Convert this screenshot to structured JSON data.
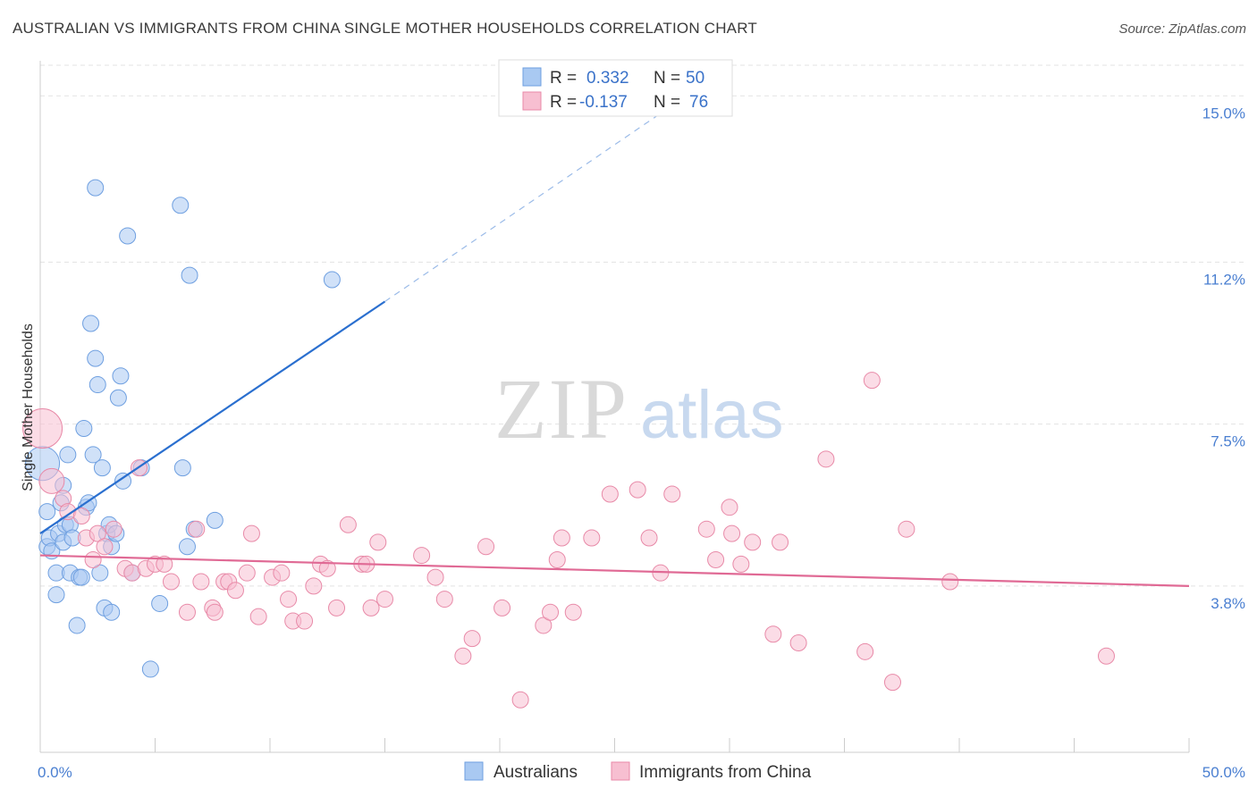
{
  "title": "AUSTRALIAN VS IMMIGRANTS FROM CHINA SINGLE MOTHER HOUSEHOLDS CORRELATION CHART",
  "source": "Source: ZipAtlas.com",
  "watermark": {
    "zip": "ZIP",
    "atlas": "atlas"
  },
  "legend": {
    "r_label": "R =",
    "n_label": "N =",
    "rows": [
      {
        "r": "0.332",
        "n": "50",
        "color": "#a9c9f2"
      },
      {
        "r": "-0.137",
        "n": "76",
        "color": "#f7bfd1"
      }
    ]
  },
  "chart_data": {
    "type": "scatter",
    "xlabel": "",
    "ylabel": "Single Mother Households",
    "xlim": [
      0,
      50
    ],
    "ylim": [
      0,
      15.7
    ],
    "x_tick_labels": [
      "0.0%",
      "50.0%"
    ],
    "y_ticks": [
      3.8,
      7.5,
      11.2,
      15.0
    ],
    "y_tick_labels": [
      "3.8%",
      "7.5%",
      "11.2%",
      "15.0%"
    ],
    "grid": "horizontal dashed",
    "legend_position": "top-center",
    "series": [
      {
        "name": "Australians",
        "color": "#a9c9f2",
        "edge": "#6e9fe0",
        "trend_color": "#2a6fcf",
        "trend": {
          "x0": 0,
          "y0": 5.0,
          "x1": 15,
          "y1": 10.3,
          "dash_to_x": 27,
          "dash_to_y": 14.6
        },
        "points": [
          [
            0.1,
            6.6
          ],
          [
            0.3,
            5.5
          ],
          [
            0.3,
            4.7
          ],
          [
            0.4,
            4.9
          ],
          [
            0.5,
            4.6
          ],
          [
            0.7,
            4.1
          ],
          [
            0.7,
            3.6
          ],
          [
            0.8,
            5.0
          ],
          [
            0.9,
            5.7
          ],
          [
            1.0,
            6.1
          ],
          [
            1.0,
            4.8
          ],
          [
            1.1,
            5.2
          ],
          [
            1.2,
            6.8
          ],
          [
            1.3,
            5.2
          ],
          [
            1.3,
            4.1
          ],
          [
            1.4,
            4.9
          ],
          [
            1.6,
            2.9
          ],
          [
            1.7,
            4.0
          ],
          [
            1.8,
            4.0
          ],
          [
            1.9,
            7.4
          ],
          [
            2.0,
            5.6
          ],
          [
            2.1,
            5.7
          ],
          [
            2.2,
            9.8
          ],
          [
            2.3,
            6.8
          ],
          [
            2.4,
            12.9
          ],
          [
            2.4,
            9.0
          ],
          [
            2.5,
            8.4
          ],
          [
            2.6,
            4.1
          ],
          [
            2.7,
            6.5
          ],
          [
            2.8,
            3.3
          ],
          [
            2.9,
            5.0
          ],
          [
            3.0,
            5.2
          ],
          [
            3.1,
            4.7
          ],
          [
            3.1,
            3.2
          ],
          [
            3.3,
            5.0
          ],
          [
            3.4,
            8.1
          ],
          [
            3.5,
            8.6
          ],
          [
            3.6,
            6.2
          ],
          [
            3.8,
            11.8
          ],
          [
            4.0,
            4.1
          ],
          [
            4.4,
            6.5
          ],
          [
            4.8,
            1.9
          ],
          [
            5.2,
            3.4
          ],
          [
            6.1,
            12.5
          ],
          [
            6.2,
            6.5
          ],
          [
            6.4,
            4.7
          ],
          [
            6.5,
            10.9
          ],
          [
            6.7,
            5.1
          ],
          [
            7.6,
            5.3
          ],
          [
            12.7,
            10.8
          ]
        ]
      },
      {
        "name": "Immigrants from China",
        "color": "#f7bfd1",
        "edge": "#e88aa8",
        "trend_color": "#e06a95",
        "trend": {
          "x0": 0,
          "y0": 4.5,
          "x1": 50,
          "y1": 3.8
        },
        "points": [
          [
            0.1,
            7.4
          ],
          [
            0.5,
            6.2
          ],
          [
            1.0,
            5.8
          ],
          [
            1.2,
            5.5
          ],
          [
            1.8,
            5.4
          ],
          [
            2.0,
            4.9
          ],
          [
            2.3,
            4.4
          ],
          [
            2.5,
            5.0
          ],
          [
            2.8,
            4.7
          ],
          [
            3.2,
            5.1
          ],
          [
            3.7,
            4.2
          ],
          [
            4.0,
            4.1
          ],
          [
            4.3,
            6.5
          ],
          [
            4.6,
            4.2
          ],
          [
            5.0,
            4.3
          ],
          [
            5.4,
            4.3
          ],
          [
            5.7,
            3.9
          ],
          [
            6.4,
            3.2
          ],
          [
            6.8,
            5.1
          ],
          [
            7.0,
            3.9
          ],
          [
            7.5,
            3.3
          ],
          [
            7.6,
            3.2
          ],
          [
            8.0,
            3.9
          ],
          [
            8.2,
            3.9
          ],
          [
            8.5,
            3.7
          ],
          [
            9.0,
            4.1
          ],
          [
            9.2,
            5.0
          ],
          [
            9.5,
            3.1
          ],
          [
            10.1,
            4.0
          ],
          [
            10.5,
            4.1
          ],
          [
            10.8,
            3.5
          ],
          [
            11.0,
            3.0
          ],
          [
            11.5,
            3.0
          ],
          [
            11.9,
            3.8
          ],
          [
            12.2,
            4.3
          ],
          [
            12.5,
            4.2
          ],
          [
            12.9,
            3.3
          ],
          [
            13.4,
            5.2
          ],
          [
            14.0,
            4.3
          ],
          [
            14.2,
            4.3
          ],
          [
            14.4,
            3.3
          ],
          [
            14.7,
            4.8
          ],
          [
            15.0,
            3.5
          ],
          [
            16.6,
            4.5
          ],
          [
            17.2,
            4.0
          ],
          [
            17.6,
            3.5
          ],
          [
            18.4,
            2.2
          ],
          [
            18.8,
            2.6
          ],
          [
            19.4,
            4.7
          ],
          [
            20.1,
            3.3
          ],
          [
            20.9,
            1.2
          ],
          [
            21.9,
            2.9
          ],
          [
            22.2,
            3.2
          ],
          [
            22.5,
            4.4
          ],
          [
            22.7,
            4.9
          ],
          [
            23.2,
            3.2
          ],
          [
            24.0,
            4.9
          ],
          [
            24.8,
            5.9
          ],
          [
            26.0,
            6.0
          ],
          [
            26.5,
            4.9
          ],
          [
            27.0,
            4.1
          ],
          [
            27.5,
            5.9
          ],
          [
            29.0,
            5.1
          ],
          [
            29.4,
            4.4
          ],
          [
            30.0,
            5.6
          ],
          [
            30.1,
            5.0
          ],
          [
            30.5,
            4.3
          ],
          [
            31.0,
            4.8
          ],
          [
            31.9,
            2.7
          ],
          [
            32.2,
            4.8
          ],
          [
            33.0,
            2.5
          ],
          [
            34.2,
            6.7
          ],
          [
            36.2,
            8.5
          ],
          [
            35.9,
            2.3
          ],
          [
            37.1,
            1.6
          ],
          [
            37.7,
            5.1
          ],
          [
            39.6,
            3.9
          ],
          [
            46.4,
            2.2
          ]
        ]
      }
    ]
  }
}
